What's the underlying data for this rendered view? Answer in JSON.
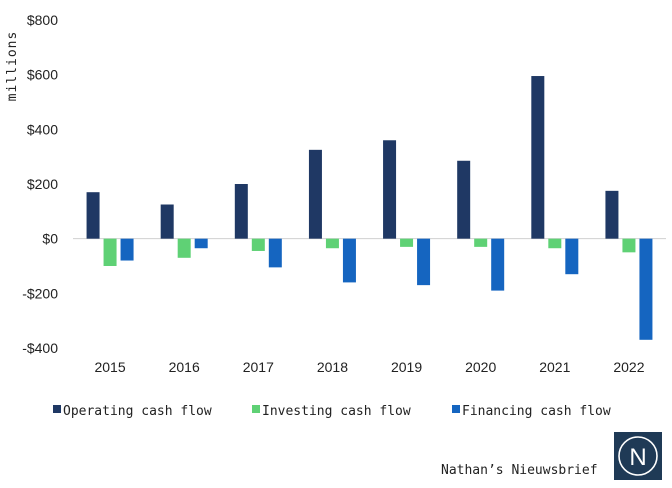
{
  "chart_data": {
    "type": "bar",
    "title": "",
    "xlabel": "",
    "ylabel": "millions",
    "categories": [
      "2015",
      "2016",
      "2017",
      "2018",
      "2019",
      "2020",
      "2021",
      "2022"
    ],
    "series": [
      {
        "name": "Operating cash flow",
        "color": "#1f3864",
        "values": [
          170,
          125,
          200,
          325,
          360,
          285,
          595,
          175
        ]
      },
      {
        "name": "Investing cash flow",
        "color": "#5fd175",
        "values": [
          -100,
          -70,
          -45,
          -35,
          -30,
          -30,
          -35,
          -50
        ]
      },
      {
        "name": "Financing cash flow",
        "color": "#1565c0",
        "values": [
          -80,
          -35,
          -105,
          -160,
          -170,
          -190,
          -130,
          -370
        ]
      }
    ],
    "ylim": [
      -400,
      800
    ],
    "yticks": [
      800,
      600,
      400,
      200,
      0,
      -200,
      -400
    ],
    "ytick_labels": [
      "$800",
      "$600",
      "$400",
      "$200",
      "$0",
      "-$200",
      "-$400"
    ],
    "grid": false,
    "legend_position": "bottom"
  },
  "branding": {
    "text": "Nathan’s Nieuwsbrief",
    "logo_letter": "N",
    "logo_bg": "#1f3a56"
  }
}
